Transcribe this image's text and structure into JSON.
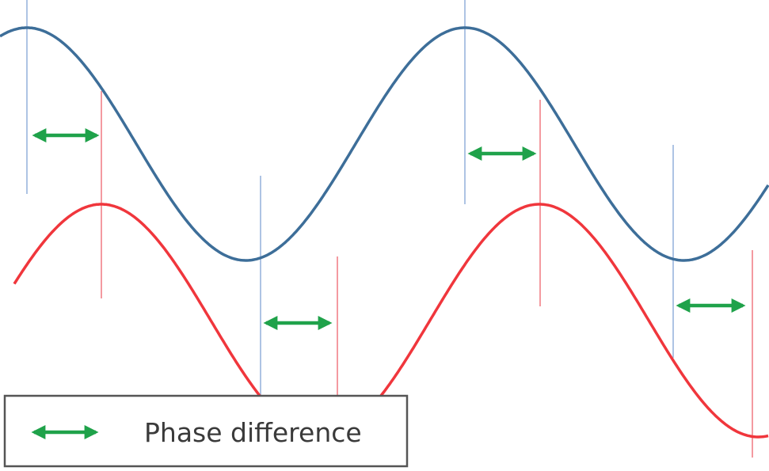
{
  "colors": {
    "wave_a": "#3d6e99",
    "wave_b": "#f0363c",
    "marker_a": "#aec4e4",
    "marker_b": "#f49aa0",
    "arrow": "#1fa24a",
    "legend_border": "#555555",
    "legend_text": "#3a3a3a",
    "background": "#ffffff"
  },
  "waves": [
    {
      "name": "wave-a",
      "color_key": "wave_a",
      "phase_lag": 0
    },
    {
      "name": "wave-b",
      "color_key": "wave_b",
      "phase_lag": 0.17
    }
  ],
  "legend": {
    "icon": "double-arrow-icon",
    "label": "Phase difference"
  }
}
